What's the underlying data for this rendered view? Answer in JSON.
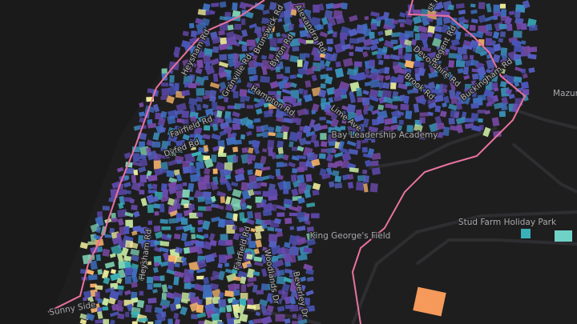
{
  "labels": {
    "streets": [
      "Heysham Rd",
      "Granville Rd",
      "Brunswick Rd",
      "Byron Rd",
      "Alexandra Rd",
      "Hampton Rd",
      "Fairfield Rd",
      "Dyfed Rd",
      "Lime Ave",
      "Devonshire Rd",
      "Brook Rd",
      "Buckingham Rd",
      "Regent Rd",
      "st Rd",
      "Heysham Rd",
      "Fairfield Rd",
      "Woodlands Dr",
      "Beverley Dr"
    ],
    "places": [
      "Bay Leadership Academy",
      "King George's Field",
      "Stud Farm Holiday Park",
      "Mazur",
      "Sunny Side"
    ]
  }
}
